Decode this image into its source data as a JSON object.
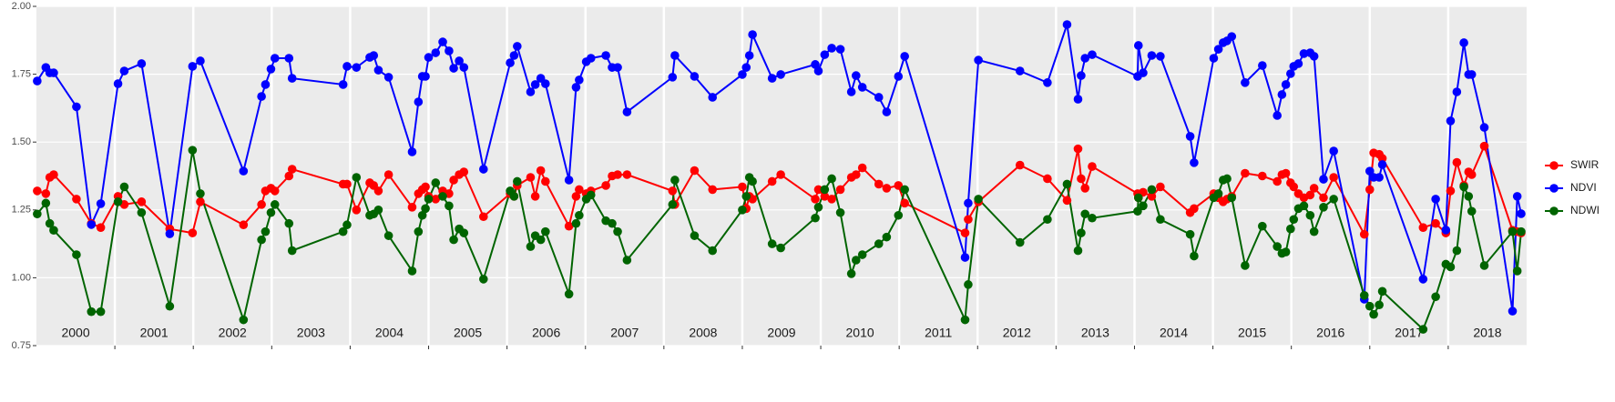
{
  "chart_data": {
    "type": "line",
    "x": [
      2000.01,
      2000.12,
      2000.17,
      2000.22,
      2000.51,
      2000.7,
      2000.82,
      2001.04,
      2001.12,
      2001.34,
      2001.7,
      2001.99,
      2002.09,
      2002.64,
      2002.87,
      2002.92,
      2002.99,
      2003.04,
      2003.22,
      2003.26,
      2003.91,
      2003.96,
      2004.08,
      2004.25,
      2004.3,
      2004.36,
      2004.49,
      2004.79,
      2004.87,
      2004.92,
      2004.96,
      2005.0,
      2005.09,
      2005.18,
      2005.26,
      2005.32,
      2005.39,
      2005.45,
      2005.7,
      2006.04,
      2006.09,
      2006.13,
      2006.3,
      2006.36,
      2006.43,
      2006.49,
      2006.79,
      2006.88,
      2006.92,
      2007.01,
      2007.07,
      2007.26,
      2007.34,
      2007.41,
      2007.53,
      2008.11,
      2008.14,
      2008.39,
      2008.62,
      2009.0,
      2009.05,
      2009.09,
      2009.13,
      2009.38,
      2009.49,
      2009.93,
      2009.97,
      2010.05,
      2010.14,
      2010.25,
      2010.39,
      2010.45,
      2010.53,
      2010.74,
      2010.84,
      2010.99,
      2011.07,
      2011.84,
      2011.88,
      2012.01,
      2012.54,
      2012.89,
      2013.14,
      2013.28,
      2013.32,
      2013.37,
      2013.46,
      2014.04,
      2014.05,
      2014.11,
      2014.22,
      2014.33,
      2014.71,
      2014.76,
      2015.01,
      2015.07,
      2015.13,
      2015.18,
      2015.24,
      2015.41,
      2015.63,
      2015.82,
      2015.88,
      2015.93,
      2015.99,
      2016.03,
      2016.09,
      2016.16,
      2016.24,
      2016.29,
      2016.41,
      2016.54,
      2016.93,
      2017.0,
      2017.05,
      2017.12,
      2017.16,
      2017.68,
      2017.84,
      2017.97,
      2018.03,
      2018.11,
      2018.2,
      2018.26,
      2018.3,
      2018.46,
      2018.82,
      2018.88,
      2018.93
    ],
    "series": [
      {
        "name": "SWIR",
        "color": "#ff0000",
        "values": [
          1.32,
          1.31,
          1.37,
          1.38,
          1.29,
          1.2,
          1.185,
          1.3,
          1.27,
          1.28,
          1.18,
          1.165,
          1.28,
          1.195,
          1.27,
          1.32,
          1.33,
          1.32,
          1.375,
          1.4,
          1.345,
          1.345,
          1.25,
          1.35,
          1.34,
          1.32,
          1.38,
          1.26,
          1.31,
          1.325,
          1.335,
          1.3,
          1.29,
          1.32,
          1.31,
          1.36,
          1.38,
          1.39,
          1.225,
          1.31,
          1.3,
          1.34,
          1.37,
          1.3,
          1.395,
          1.355,
          1.19,
          1.3,
          1.325,
          1.31,
          1.32,
          1.34,
          1.375,
          1.38,
          1.38,
          1.32,
          1.27,
          1.395,
          1.325,
          1.335,
          1.255,
          1.3,
          1.29,
          1.355,
          1.38,
          1.29,
          1.325,
          1.3,
          1.29,
          1.325,
          1.37,
          1.38,
          1.405,
          1.345,
          1.33,
          1.34,
          1.275,
          1.165,
          1.215,
          1.28,
          1.415,
          1.365,
          1.285,
          1.475,
          1.365,
          1.33,
          1.41,
          1.31,
          1.295,
          1.315,
          1.3,
          1.335,
          1.24,
          1.255,
          1.31,
          1.295,
          1.28,
          1.29,
          1.3,
          1.385,
          1.375,
          1.355,
          1.38,
          1.385,
          1.35,
          1.335,
          1.31,
          1.295,
          1.305,
          1.33,
          1.295,
          1.37,
          1.16,
          1.325,
          1.46,
          1.455,
          1.44,
          1.185,
          1.2,
          1.165,
          1.32,
          1.425,
          1.34,
          1.39,
          1.38,
          1.485,
          1.175,
          1.17,
          1.165
        ]
      },
      {
        "name": "NDVI",
        "color": "#0000ff",
        "values": [
          1.725,
          1.775,
          1.755,
          1.755,
          1.63,
          1.196,
          1.273,
          1.715,
          1.762,
          1.789,
          1.162,
          1.779,
          1.799,
          1.393,
          1.668,
          1.712,
          1.769,
          1.809,
          1.809,
          1.735,
          1.712,
          1.779,
          1.775,
          1.812,
          1.819,
          1.765,
          1.739,
          1.464,
          1.648,
          1.742,
          1.742,
          1.812,
          1.829,
          1.869,
          1.836,
          1.772,
          1.799,
          1.775,
          1.4,
          1.792,
          1.819,
          1.853,
          1.685,
          1.712,
          1.735,
          1.715,
          1.36,
          1.702,
          1.729,
          1.796,
          1.809,
          1.819,
          1.775,
          1.775,
          1.611,
          1.739,
          1.819,
          1.742,
          1.665,
          1.749,
          1.775,
          1.819,
          1.896,
          1.735,
          1.749,
          1.786,
          1.762,
          1.822,
          1.846,
          1.842,
          1.685,
          1.745,
          1.702,
          1.665,
          1.611,
          1.742,
          1.816,
          1.075,
          1.275,
          1.802,
          1.762,
          1.719,
          1.933,
          1.658,
          1.745,
          1.809,
          1.822,
          1.742,
          1.856,
          1.755,
          1.819,
          1.816,
          1.521,
          1.424,
          1.809,
          1.842,
          1.866,
          1.873,
          1.889,
          1.719,
          1.782,
          1.598,
          1.675,
          1.712,
          1.752,
          1.779,
          1.789,
          1.826,
          1.829,
          1.816,
          1.363,
          1.467,
          0.921,
          1.393,
          1.37,
          1.37,
          1.417,
          0.995,
          1.29,
          1.176,
          1.578,
          1.685,
          1.866,
          1.749,
          1.749,
          1.554,
          0.877,
          1.3,
          1.236
        ]
      },
      {
        "name": "NDWI",
        "color": "#006400",
        "values": [
          1.235,
          1.275,
          1.2,
          1.175,
          1.085,
          0.875,
          0.875,
          1.28,
          1.335,
          1.24,
          0.895,
          1.47,
          1.31,
          0.845,
          1.14,
          1.17,
          1.24,
          1.27,
          1.2,
          1.1,
          1.17,
          1.195,
          1.37,
          1.23,
          1.235,
          1.25,
          1.155,
          1.025,
          1.17,
          1.23,
          1.255,
          1.29,
          1.35,
          1.3,
          1.265,
          1.14,
          1.18,
          1.165,
          0.995,
          1.32,
          1.3,
          1.355,
          1.115,
          1.155,
          1.14,
          1.17,
          0.94,
          1.2,
          1.23,
          1.29,
          1.305,
          1.21,
          1.2,
          1.17,
          1.065,
          1.27,
          1.36,
          1.155,
          1.1,
          1.25,
          1.3,
          1.37,
          1.355,
          1.125,
          1.11,
          1.22,
          1.26,
          1.325,
          1.365,
          1.24,
          1.015,
          1.065,
          1.085,
          1.125,
          1.15,
          1.23,
          1.325,
          0.845,
          0.975,
          1.29,
          1.13,
          1.215,
          1.345,
          1.1,
          1.165,
          1.235,
          1.22,
          1.245,
          1.295,
          1.265,
          1.325,
          1.215,
          1.16,
          1.08,
          1.295,
          1.31,
          1.36,
          1.365,
          1.295,
          1.045,
          1.19,
          1.115,
          1.09,
          1.095,
          1.18,
          1.215,
          1.255,
          1.265,
          1.23,
          1.17,
          1.26,
          1.29,
          0.935,
          0.895,
          0.865,
          0.9,
          0.95,
          0.81,
          0.93,
          1.05,
          1.04,
          1.1,
          1.335,
          1.3,
          1.245,
          1.045,
          1.17,
          1.025,
          1.17
        ]
      }
    ],
    "xlim": [
      2000,
      2019
    ],
    "xticks": [
      2001,
      2002,
      2003,
      2004,
      2005,
      2006,
      2007,
      2008,
      2009,
      2010,
      2011,
      2012,
      2013,
      2014,
      2015,
      2016,
      2017,
      2018
    ],
    "year_labels": [
      "2000",
      "2001",
      "2002",
      "2003",
      "2004",
      "2005",
      "2006",
      "2007",
      "2008",
      "2009",
      "2010",
      "2011",
      "2012",
      "2013",
      "2014",
      "2015",
      "2016",
      "2017",
      "2018"
    ],
    "ylim": [
      0.75,
      2.0
    ],
    "yticks": [
      {
        "value": 0.75,
        "label": "0.75"
      },
      {
        "value": 1.0,
        "label": "1.00"
      },
      {
        "value": 1.25,
        "label": "1.25"
      },
      {
        "value": 1.5,
        "label": "1.50"
      },
      {
        "value": 1.75,
        "label": "1.75"
      },
      {
        "value": 2.0,
        "label": "2.00"
      }
    ],
    "grid": true,
    "legend": "right"
  }
}
